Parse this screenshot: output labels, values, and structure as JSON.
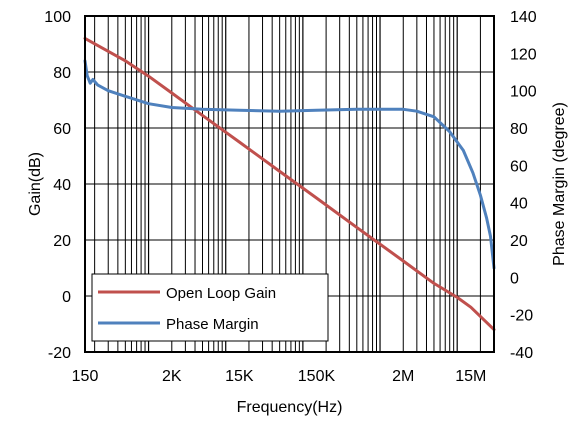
{
  "chart_data": {
    "type": "line",
    "title": "",
    "xlabel": "Frequency(Hz)",
    "ylabel": "Gain(dB)",
    "y2label": "Phase Margin (degree)",
    "x_scale": "log",
    "xlim": [
      150,
      30000000
    ],
    "ylim": [
      -20,
      100
    ],
    "y2lim": [
      -40,
      140
    ],
    "x_ticks": [
      {
        "value": 150,
        "label": "150"
      },
      {
        "value": 2000,
        "label": "2K"
      },
      {
        "value": 15000,
        "label": "15K"
      },
      {
        "value": 150000,
        "label": "150K"
      },
      {
        "value": 2000000,
        "label": "2M"
      },
      {
        "value": 15000000,
        "label": "15M"
      }
    ],
    "y_ticks": [
      -20,
      0,
      20,
      40,
      60,
      80,
      100
    ],
    "y2_ticks": [
      -40,
      -20,
      0,
      20,
      40,
      60,
      80,
      100,
      120,
      140
    ],
    "grid": true,
    "legend_position": "bottom-left",
    "series": [
      {
        "name": "Open Loop Gain",
        "axis": "left",
        "color": "#c0504d",
        "points": [
          [
            150,
            92
          ],
          [
            500,
            84
          ],
          [
            1000,
            78.5
          ],
          [
            2000,
            72.5
          ],
          [
            5000,
            64.5
          ],
          [
            10000,
            58.5
          ],
          [
            15000,
            55
          ],
          [
            50000,
            44.5
          ],
          [
            150000,
            35
          ],
          [
            500000,
            24.5
          ],
          [
            2000000,
            12.5
          ],
          [
            5000000,
            4.5
          ],
          [
            10000000,
            -0.5
          ],
          [
            15000000,
            -4
          ],
          [
            30000000,
            -12
          ]
        ]
      },
      {
        "name": "Phase Margin",
        "axis": "right",
        "color": "#4f81bd",
        "points": [
          [
            150,
            116
          ],
          [
            160,
            108
          ],
          [
            175,
            104
          ],
          [
            190,
            106
          ],
          [
            220,
            103
          ],
          [
            300,
            100
          ],
          [
            500,
            97
          ],
          [
            1000,
            93
          ],
          [
            2000,
            91
          ],
          [
            5000,
            90
          ],
          [
            15000,
            89.5
          ],
          [
            50000,
            89
          ],
          [
            150000,
            89.5
          ],
          [
            500000,
            90
          ],
          [
            2000000,
            90
          ],
          [
            3000000,
            89
          ],
          [
            5000000,
            86
          ],
          [
            8000000,
            78
          ],
          [
            12000000,
            68
          ],
          [
            16000000,
            56
          ],
          [
            20000000,
            44
          ],
          [
            24000000,
            32
          ],
          [
            27000000,
            22
          ],
          [
            30000000,
            5
          ]
        ]
      }
    ]
  }
}
